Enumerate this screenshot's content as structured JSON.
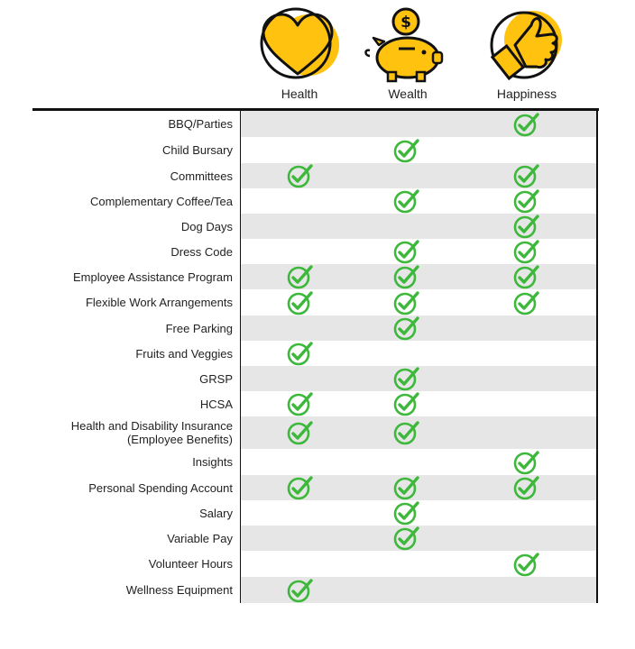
{
  "columns": [
    {
      "label": "Health",
      "icon": "heart-icon"
    },
    {
      "label": "Wealth",
      "icon": "piggy-bank-icon"
    },
    {
      "label": "Happiness",
      "icon": "thumbs-up-icon"
    }
  ],
  "colors": {
    "accent_yellow": "#FFC20E",
    "check_green": "#3DB83B",
    "band_gray": "#E6E6E6"
  },
  "rows": [
    {
      "label": "BBQ/Parties",
      "health": false,
      "wealth": false,
      "happiness": true
    },
    {
      "label": "Child Bursary",
      "health": false,
      "wealth": true,
      "happiness": false
    },
    {
      "label": "Committees",
      "health": true,
      "wealth": false,
      "happiness": true
    },
    {
      "label": "Complementary Coffee/Tea",
      "health": false,
      "wealth": true,
      "happiness": true
    },
    {
      "label": "Dog Days",
      "health": false,
      "wealth": false,
      "happiness": true
    },
    {
      "label": "Dress Code",
      "health": false,
      "wealth": true,
      "happiness": true
    },
    {
      "label": "Employee Assistance Program",
      "health": true,
      "wealth": true,
      "happiness": true
    },
    {
      "label": "Flexible Work Arrangements",
      "health": true,
      "wealth": true,
      "happiness": true
    },
    {
      "label": "Free Parking",
      "health": false,
      "wealth": true,
      "happiness": false
    },
    {
      "label": "Fruits and Veggies",
      "health": true,
      "wealth": false,
      "happiness": false
    },
    {
      "label": "GRSP",
      "health": false,
      "wealth": true,
      "happiness": false
    },
    {
      "label": "HCSA",
      "health": true,
      "wealth": true,
      "happiness": false
    },
    {
      "label": "Health and Disability Insurance\n(Employee Benefits)",
      "health": true,
      "wealth": true,
      "happiness": false
    },
    {
      "label": "Insights",
      "health": false,
      "wealth": false,
      "happiness": true
    },
    {
      "label": "Personal Spending Account",
      "health": true,
      "wealth": true,
      "happiness": true
    },
    {
      "label": "Salary",
      "health": false,
      "wealth": true,
      "happiness": false
    },
    {
      "label": "Variable Pay",
      "health": false,
      "wealth": true,
      "happiness": false
    },
    {
      "label": "Volunteer Hours",
      "health": false,
      "wealth": false,
      "happiness": true
    },
    {
      "label": "Wellness Equipment",
      "health": true,
      "wealth": false,
      "happiness": false
    }
  ]
}
